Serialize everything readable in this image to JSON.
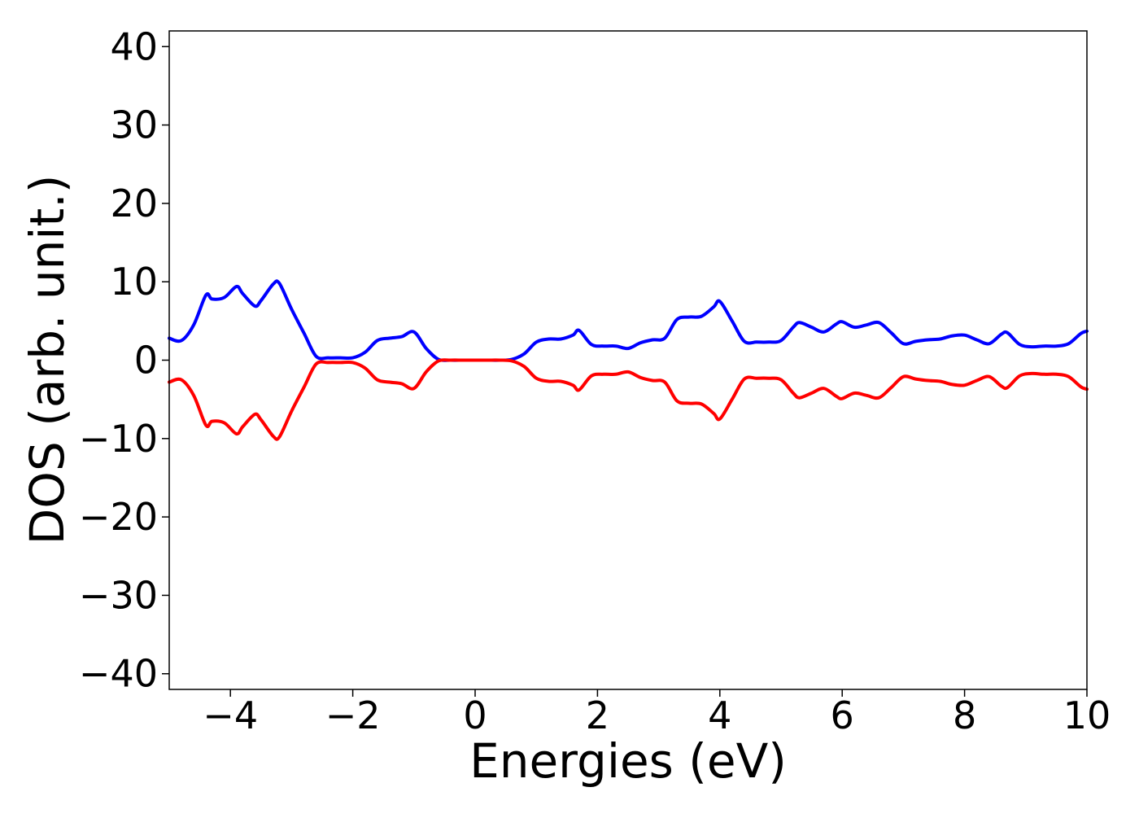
{
  "chart_data": {
    "type": "line",
    "title": "",
    "xlabel": "Energies (eV)",
    "ylabel": "DOS (arb. unit.)",
    "xlim": [
      -5,
      10
    ],
    "ylim": [
      -42,
      42
    ],
    "xticks": [
      -4,
      -2,
      0,
      2,
      4,
      6,
      8,
      10
    ],
    "xtick_labels": [
      "−4",
      "−2",
      "0",
      "2",
      "4",
      "6",
      "8",
      "10"
    ],
    "yticks": [
      -40,
      -30,
      -20,
      -10,
      0,
      10,
      20,
      30,
      40
    ],
    "ytick_labels": [
      "−40",
      "−30",
      "−20",
      "−10",
      "0",
      "10",
      "20",
      "30",
      "40"
    ],
    "grid": false,
    "legend": "none",
    "x": [
      -5.0,
      -4.8,
      -4.6,
      -4.4,
      -4.3,
      -4.1,
      -3.9,
      -3.8,
      -3.6,
      -3.5,
      -3.3,
      -3.2,
      -3.0,
      -2.8,
      -2.6,
      -2.4,
      -2.2,
      -2.0,
      -1.8,
      -1.6,
      -1.4,
      -1.2,
      -1.0,
      -0.8,
      -0.6,
      -0.4,
      -0.2,
      0.0,
      0.2,
      0.4,
      0.6,
      0.8,
      1.0,
      1.2,
      1.4,
      1.6,
      1.7,
      1.9,
      2.1,
      2.3,
      2.5,
      2.7,
      2.9,
      3.1,
      3.3,
      3.5,
      3.7,
      3.9,
      4.0,
      4.2,
      4.4,
      4.6,
      4.8,
      5.0,
      5.2,
      5.3,
      5.5,
      5.7,
      5.9,
      6.0,
      6.2,
      6.4,
      6.6,
      6.8,
      7.0,
      7.2,
      7.4,
      7.6,
      7.8,
      8.0,
      8.2,
      8.4,
      8.6,
      8.7,
      8.9,
      9.1,
      9.3,
      9.5,
      9.7,
      9.9,
      10.0
    ],
    "series": [
      {
        "color": "#0000ff",
        "values": [
          2.8,
          2.5,
          4.5,
          8.3,
          7.8,
          8.0,
          9.4,
          8.5,
          6.9,
          7.6,
          9.7,
          9.8,
          6.5,
          3.5,
          0.5,
          0.3,
          0.3,
          0.3,
          1.0,
          2.5,
          2.8,
          3.0,
          3.6,
          1.5,
          0.1,
          0.0,
          0.0,
          0.0,
          0.0,
          0.0,
          0.1,
          0.8,
          2.3,
          2.7,
          2.7,
          3.2,
          3.8,
          2.0,
          1.8,
          1.8,
          1.5,
          2.2,
          2.6,
          2.8,
          5.2,
          5.5,
          5.6,
          6.8,
          7.5,
          5.0,
          2.4,
          2.3,
          2.3,
          2.5,
          4.2,
          4.8,
          4.2,
          3.6,
          4.6,
          4.9,
          4.2,
          4.5,
          4.8,
          3.5,
          2.1,
          2.4,
          2.6,
          2.7,
          3.1,
          3.2,
          2.6,
          2.1,
          3.3,
          3.5,
          2.0,
          1.7,
          1.8,
          1.8,
          2.1,
          3.4,
          3.7
        ]
      },
      {
        "color": "#ff0000",
        "values": [
          -2.8,
          -2.5,
          -4.5,
          -8.3,
          -7.8,
          -8.0,
          -9.4,
          -8.5,
          -6.9,
          -7.6,
          -9.7,
          -9.8,
          -6.5,
          -3.5,
          -0.5,
          -0.3,
          -0.3,
          -0.3,
          -1.0,
          -2.5,
          -2.8,
          -3.0,
          -3.6,
          -1.5,
          -0.1,
          0.0,
          0.0,
          0.0,
          0.0,
          0.0,
          -0.1,
          -0.8,
          -2.3,
          -2.7,
          -2.7,
          -3.2,
          -3.8,
          -2.0,
          -1.8,
          -1.8,
          -1.5,
          -2.2,
          -2.6,
          -2.8,
          -5.2,
          -5.5,
          -5.6,
          -6.8,
          -7.5,
          -5.0,
          -2.4,
          -2.3,
          -2.3,
          -2.5,
          -4.2,
          -4.8,
          -4.2,
          -3.6,
          -4.6,
          -4.9,
          -4.2,
          -4.5,
          -4.8,
          -3.5,
          -2.1,
          -2.4,
          -2.6,
          -2.7,
          -3.1,
          -3.2,
          -2.6,
          -2.1,
          -3.3,
          -3.5,
          -2.0,
          -1.7,
          -1.8,
          -1.8,
          -2.1,
          -3.4,
          -3.7
        ]
      }
    ]
  }
}
